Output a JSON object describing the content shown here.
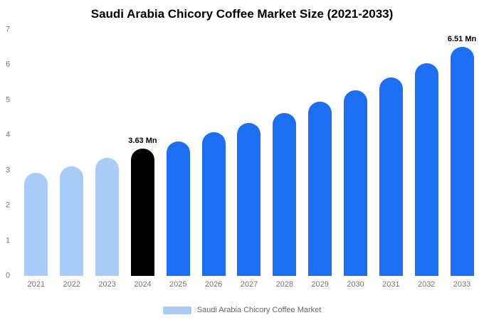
{
  "chart_data": {
    "type": "bar",
    "title": "Saudi Arabia Chicory Coffee Market Size (2021-2033)",
    "categories": [
      "2021",
      "2022",
      "2023",
      "2024",
      "2025",
      "2026",
      "2027",
      "2028",
      "2029",
      "2030",
      "2031",
      "2032",
      "2033"
    ],
    "values": [
      2.93,
      3.12,
      3.35,
      3.63,
      3.82,
      4.08,
      4.35,
      4.63,
      4.95,
      5.28,
      5.65,
      6.05,
      6.51
    ],
    "unit": "Mn",
    "ylim": [
      0,
      7
    ],
    "yticks": [
      0,
      1,
      2,
      3,
      4,
      5,
      6,
      7
    ],
    "grid": false,
    "bar_colors": [
      "#a9cdf7",
      "#a9cdf7",
      "#a9cdf7",
      "#000000",
      "#1c6ef2",
      "#1c6ef2",
      "#1c6ef2",
      "#1c6ef2",
      "#1c6ef2",
      "#1c6ef2",
      "#1c6ef2",
      "#1c6ef2",
      "#1c6ef2"
    ],
    "annotations": [
      {
        "index": 3,
        "text": "3.63 Mn"
      },
      {
        "index": 12,
        "text": "6.51 Mn"
      }
    ],
    "legend": {
      "label": "Saudi Arabia Chicory Coffee Market",
      "swatch_color": "#a9cdf7",
      "position": "bottom"
    }
  }
}
